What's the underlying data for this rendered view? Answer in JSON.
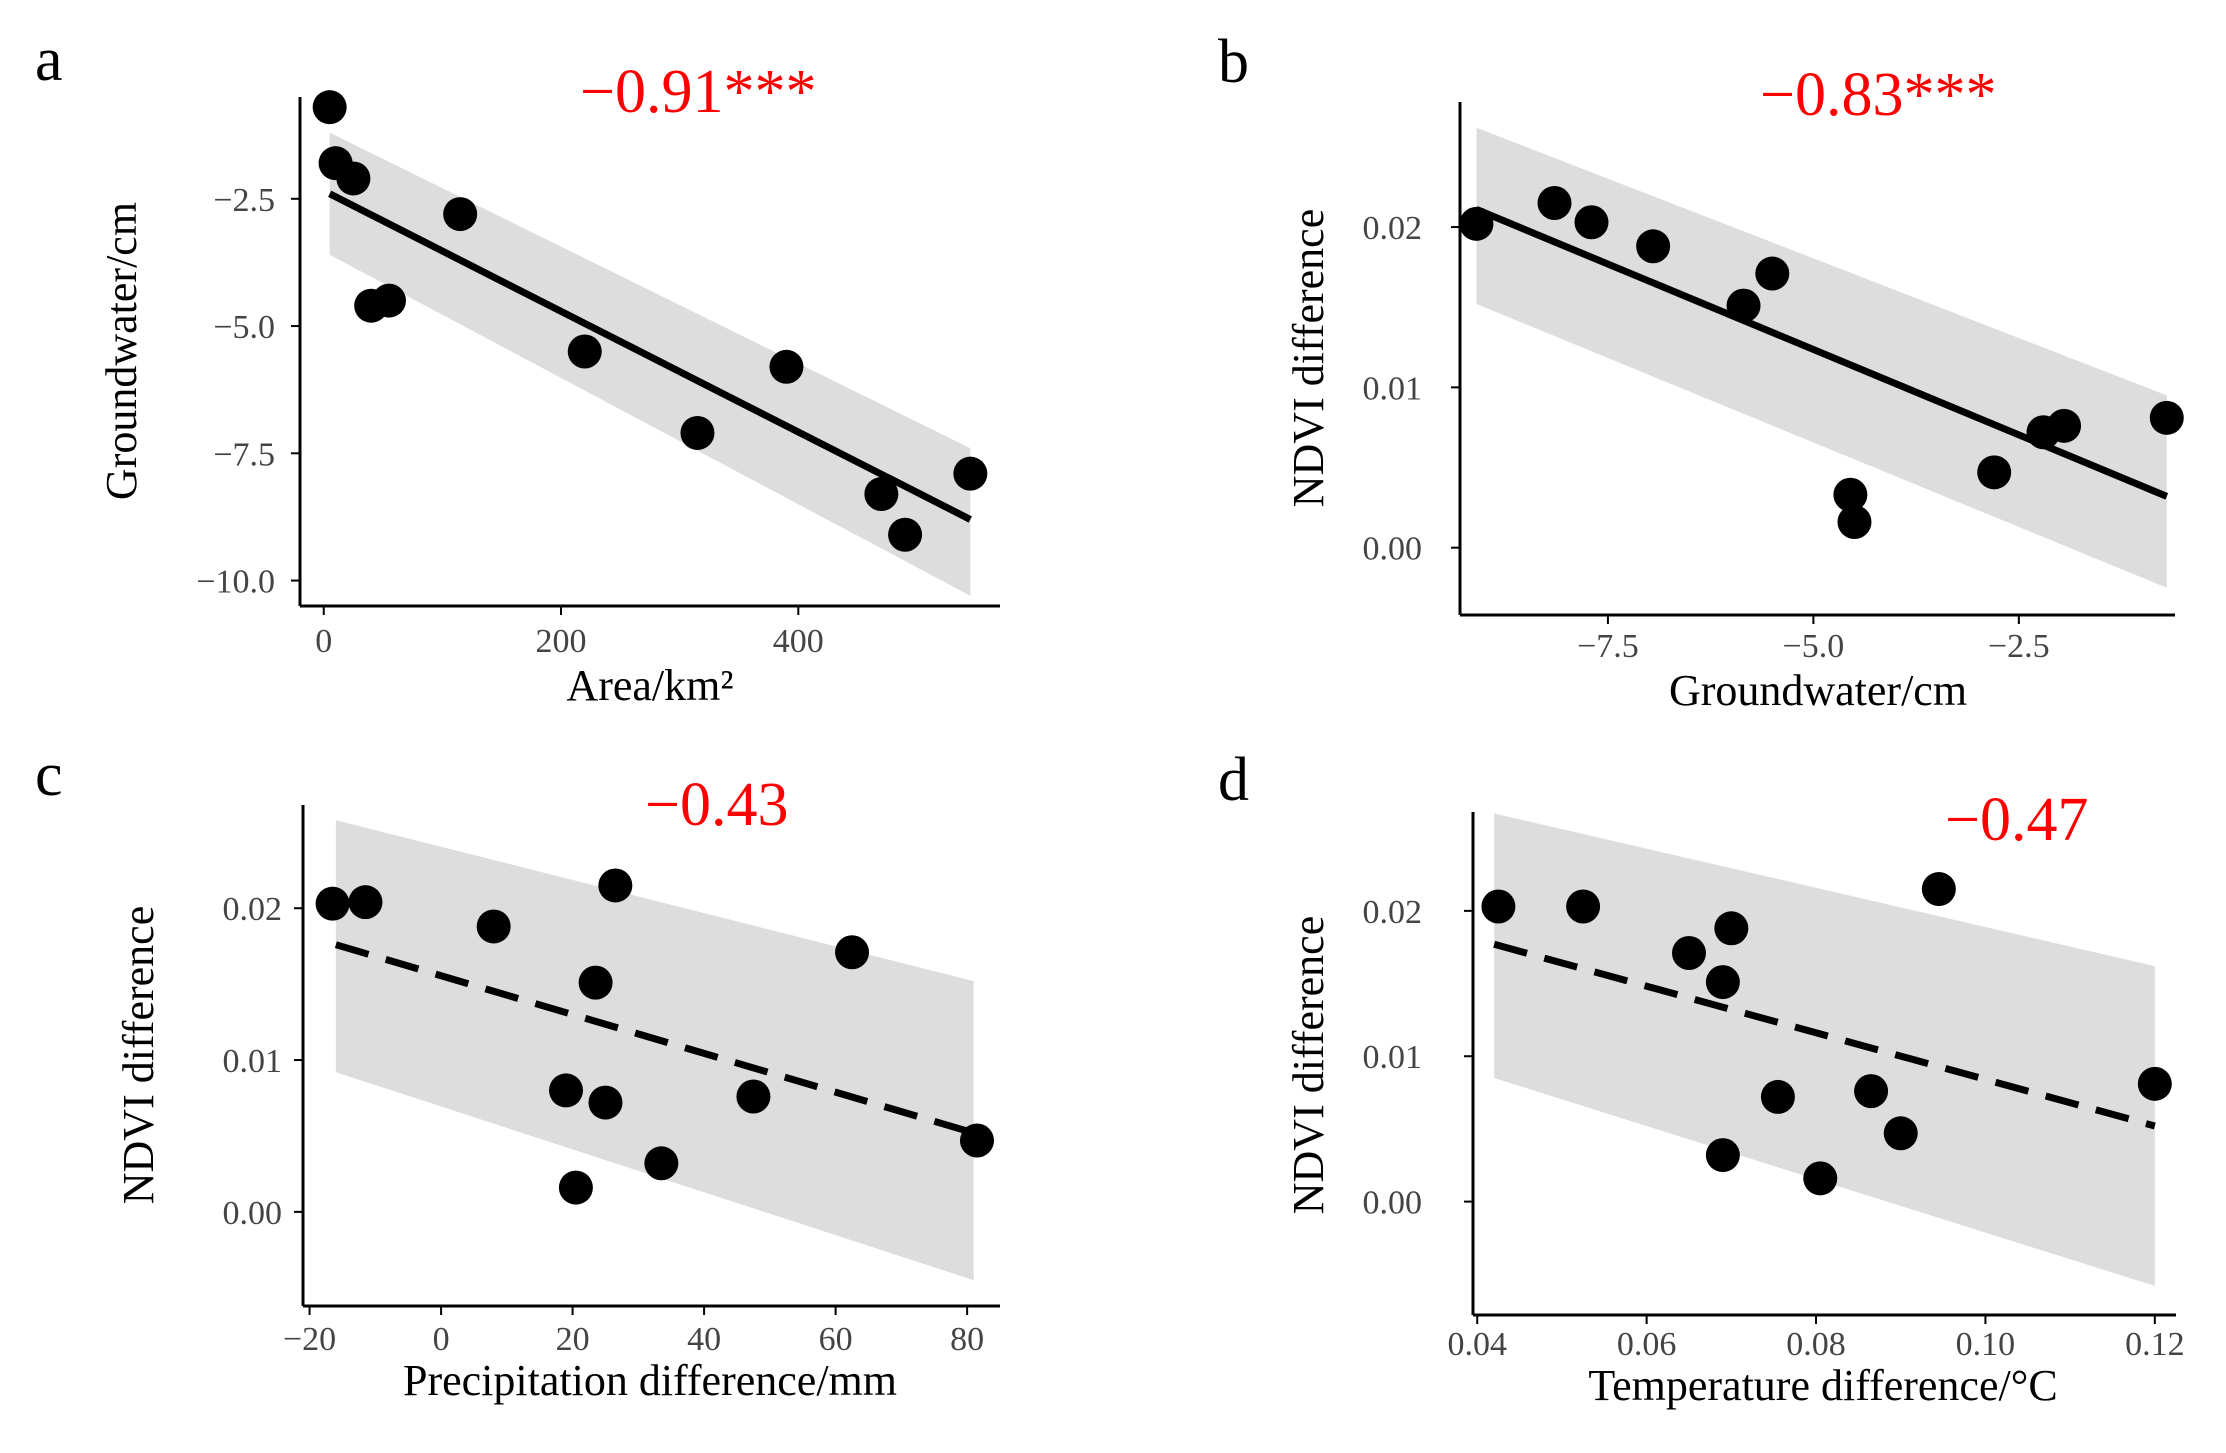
{
  "colors": {
    "correlation_text": "#ff0000",
    "band": "#dddddd",
    "point": "#000000",
    "line": "#000000",
    "axis": "#000000",
    "tick_text": "#444444"
  },
  "chart_data": [
    {
      "type": "scatter",
      "panel": "a",
      "correlation_label": "−0.91***",
      "title": "",
      "xlabel": "Area/km²",
      "ylabel": "Groundwater/cm",
      "xlim": [
        -20,
        570
      ],
      "ylim": [
        -10.5,
        -0.5
      ],
      "xticks": [
        0,
        200,
        400
      ],
      "xtick_labels": [
        "0",
        "200",
        "400"
      ],
      "yticks": [
        -10.0,
        -7.5,
        -5.0,
        -2.5
      ],
      "ytick_labels": [
        "−10.0",
        "−7.5",
        "−5.0",
        "−2.5"
      ],
      "points": [
        {
          "x": 5,
          "y": -0.7
        },
        {
          "x": 10,
          "y": -1.8
        },
        {
          "x": 25,
          "y": -2.1
        },
        {
          "x": 40,
          "y": -4.6
        },
        {
          "x": 55,
          "y": -4.5
        },
        {
          "x": 115,
          "y": -2.8
        },
        {
          "x": 220,
          "y": -5.5
        },
        {
          "x": 315,
          "y": -7.1
        },
        {
          "x": 390,
          "y": -5.8
        },
        {
          "x": 470,
          "y": -8.3
        },
        {
          "x": 490,
          "y": -9.1
        },
        {
          "x": 545,
          "y": -7.9
        }
      ],
      "fit": {
        "x": [
          5,
          545
        ],
        "y": [
          -2.4,
          -8.8
        ],
        "style": "solid"
      },
      "ci_band": {
        "x": [
          5,
          545
        ],
        "upper": [
          -1.2,
          -7.4
        ],
        "lower": [
          -3.6,
          -10.3
        ]
      }
    },
    {
      "type": "scatter",
      "panel": "b",
      "correlation_label": "−0.83***",
      "title": "",
      "xlabel": "Groundwater/cm",
      "ylabel": "NDVI difference",
      "xlim": [
        -9.3,
        -0.6
      ],
      "ylim": [
        -0.0042,
        0.0278
      ],
      "xticks": [
        -7.5,
        -5.0,
        -2.5
      ],
      "xtick_labels": [
        "−7.5",
        "−5.0",
        "−2.5"
      ],
      "yticks": [
        0.0,
        0.01,
        0.02
      ],
      "ytick_labels": [
        "0.00",
        "0.01",
        "0.02"
      ],
      "points": [
        {
          "x": -9.1,
          "y": 0.0202
        },
        {
          "x": -8.15,
          "y": 0.0215
        },
        {
          "x": -7.7,
          "y": 0.0203
        },
        {
          "x": -6.95,
          "y": 0.0188
        },
        {
          "x": -5.85,
          "y": 0.0151
        },
        {
          "x": -5.5,
          "y": 0.0171
        },
        {
          "x": -4.55,
          "y": 0.0033
        },
        {
          "x": -4.5,
          "y": 0.0016
        },
        {
          "x": -2.8,
          "y": 0.0047
        },
        {
          "x": -2.2,
          "y": 0.0072
        },
        {
          "x": -1.95,
          "y": 0.0076
        },
        {
          "x": -0.7,
          "y": 0.0081
        }
      ],
      "fit": {
        "x": [
          -9.1,
          -0.7
        ],
        "y": [
          0.0211,
          0.0032
        ],
        "style": "solid"
      },
      "ci_band": {
        "x": [
          -9.1,
          -0.7
        ],
        "upper": [
          0.0262,
          0.0095
        ],
        "lower": [
          0.0152,
          -0.0025
        ]
      }
    },
    {
      "type": "scatter",
      "panel": "c",
      "correlation_label": "−0.43",
      "title": "",
      "xlabel": "Precipitation difference/mm",
      "ylabel": "NDVI difference",
      "xlim": [
        -21,
        85
      ],
      "ylim": [
        -0.0062,
        0.0268
      ],
      "xticks": [
        -20,
        0,
        20,
        40,
        60,
        80
      ],
      "xtick_labels": [
        "−20",
        "0",
        "20",
        "40",
        "60",
        "80"
      ],
      "yticks": [
        0.0,
        0.01,
        0.02
      ],
      "ytick_labels": [
        "0.00",
        "0.01",
        "0.02"
      ],
      "points": [
        {
          "x": -16.5,
          "y": 0.0203
        },
        {
          "x": -11.5,
          "y": 0.0204
        },
        {
          "x": 8,
          "y": 0.0188
        },
        {
          "x": 19,
          "y": 0.008
        },
        {
          "x": 20.5,
          "y": 0.0016
        },
        {
          "x": 23.5,
          "y": 0.0151
        },
        {
          "x": 25,
          "y": 0.0072
        },
        {
          "x": 26.5,
          "y": 0.0215
        },
        {
          "x": 33.5,
          "y": 0.0032
        },
        {
          "x": 47.5,
          "y": 0.0076
        },
        {
          "x": 62.5,
          "y": 0.0171
        },
        {
          "x": 81.5,
          "y": 0.0047
        }
      ],
      "fit": {
        "x": [
          -16,
          81
        ],
        "y": [
          0.0176,
          0.0052
        ],
        "style": "dashed"
      },
      "ci_band": {
        "x": [
          -16,
          81
        ],
        "upper": [
          0.0258,
          0.0152
        ],
        "lower": [
          0.0092,
          -0.0045
        ]
      }
    },
    {
      "type": "scatter",
      "panel": "d",
      "correlation_label": "−0.47",
      "title": "",
      "xlabel": "Temperature difference/°C",
      "ylabel": "NDVI difference",
      "xlim": [
        0.0395,
        0.1225
      ],
      "ylim": [
        -0.0078,
        0.0268
      ],
      "xticks": [
        0.04,
        0.06,
        0.08,
        0.1,
        0.12
      ],
      "xtick_labels": [
        "0.04",
        "0.06",
        "0.08",
        "0.10",
        "0.12"
      ],
      "yticks": [
        0.0,
        0.01,
        0.02
      ],
      "ytick_labels": [
        "0.00",
        "0.01",
        "0.02"
      ],
      "points": [
        {
          "x": 0.0425,
          "y": 0.0203
        },
        {
          "x": 0.0525,
          "y": 0.0203
        },
        {
          "x": 0.065,
          "y": 0.0171
        },
        {
          "x": 0.069,
          "y": 0.0151
        },
        {
          "x": 0.069,
          "y": 0.0032
        },
        {
          "x": 0.07,
          "y": 0.0188
        },
        {
          "x": 0.0755,
          "y": 0.0072
        },
        {
          "x": 0.0805,
          "y": 0.0016
        },
        {
          "x": 0.0865,
          "y": 0.0076
        },
        {
          "x": 0.09,
          "y": 0.0047
        },
        {
          "x": 0.0945,
          "y": 0.0215
        },
        {
          "x": 0.12,
          "y": 0.0081
        }
      ],
      "fit": {
        "x": [
          0.042,
          0.12
        ],
        "y": [
          0.0177,
          0.0052
        ],
        "style": "dashed"
      },
      "ci_band": {
        "x": [
          0.042,
          0.12
        ],
        "upper": [
          0.0267,
          0.0162
        ],
        "lower": [
          0.0085,
          -0.0058
        ]
      }
    }
  ]
}
